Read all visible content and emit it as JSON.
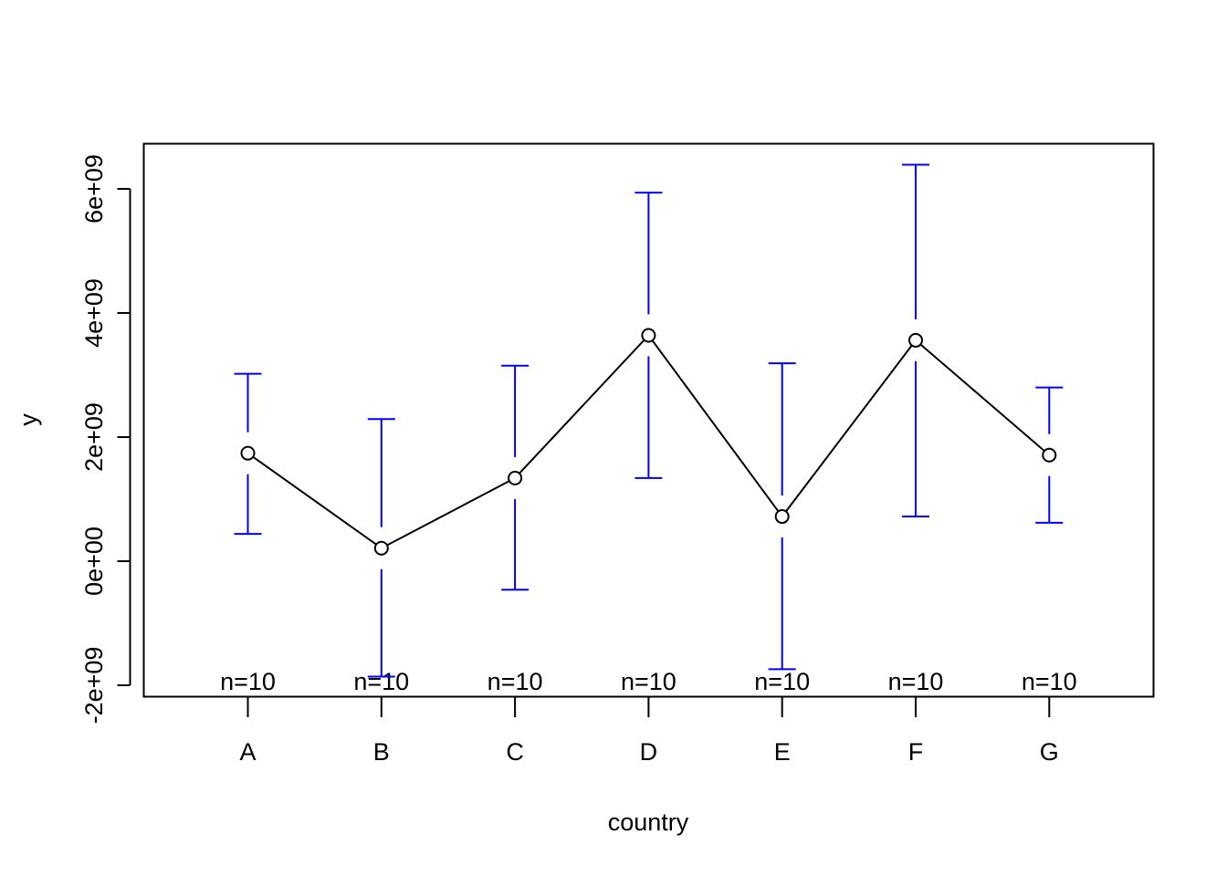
{
  "chart_data": {
    "type": "line",
    "title": "",
    "xlabel": "country",
    "ylabel": "y",
    "categories": [
      "A",
      "B",
      "C",
      "D",
      "E",
      "F",
      "G"
    ],
    "series": [
      {
        "values": [
          1740000000,
          210000000,
          1340000000,
          3640000000,
          720000000,
          3560000000,
          1710000000
        ],
        "lower": [
          440000000,
          -1860000000,
          -460000000,
          1340000000,
          -1740000000,
          720000000,
          620000000
        ],
        "upper": [
          3020000000,
          2290000000,
          3150000000,
          5940000000,
          3190000000,
          6390000000,
          2800000000
        ],
        "line_color": "#000000",
        "error_bar_color": "#0000ff"
      }
    ],
    "counts": [
      "n=10",
      "n=10",
      "n=10",
      "n=10",
      "n=10",
      "n=10",
      "n=10"
    ],
    "ylim": [
      -2200000000,
      6700000000
    ],
    "yticks": [
      -2000000000,
      0,
      2000000000,
      4000000000,
      6000000000
    ],
    "ytick_labels": [
      "-2e+09",
      "0e+00",
      "2e+09",
      "4e+09",
      "6e+09"
    ],
    "grid": false,
    "legend": "none"
  }
}
